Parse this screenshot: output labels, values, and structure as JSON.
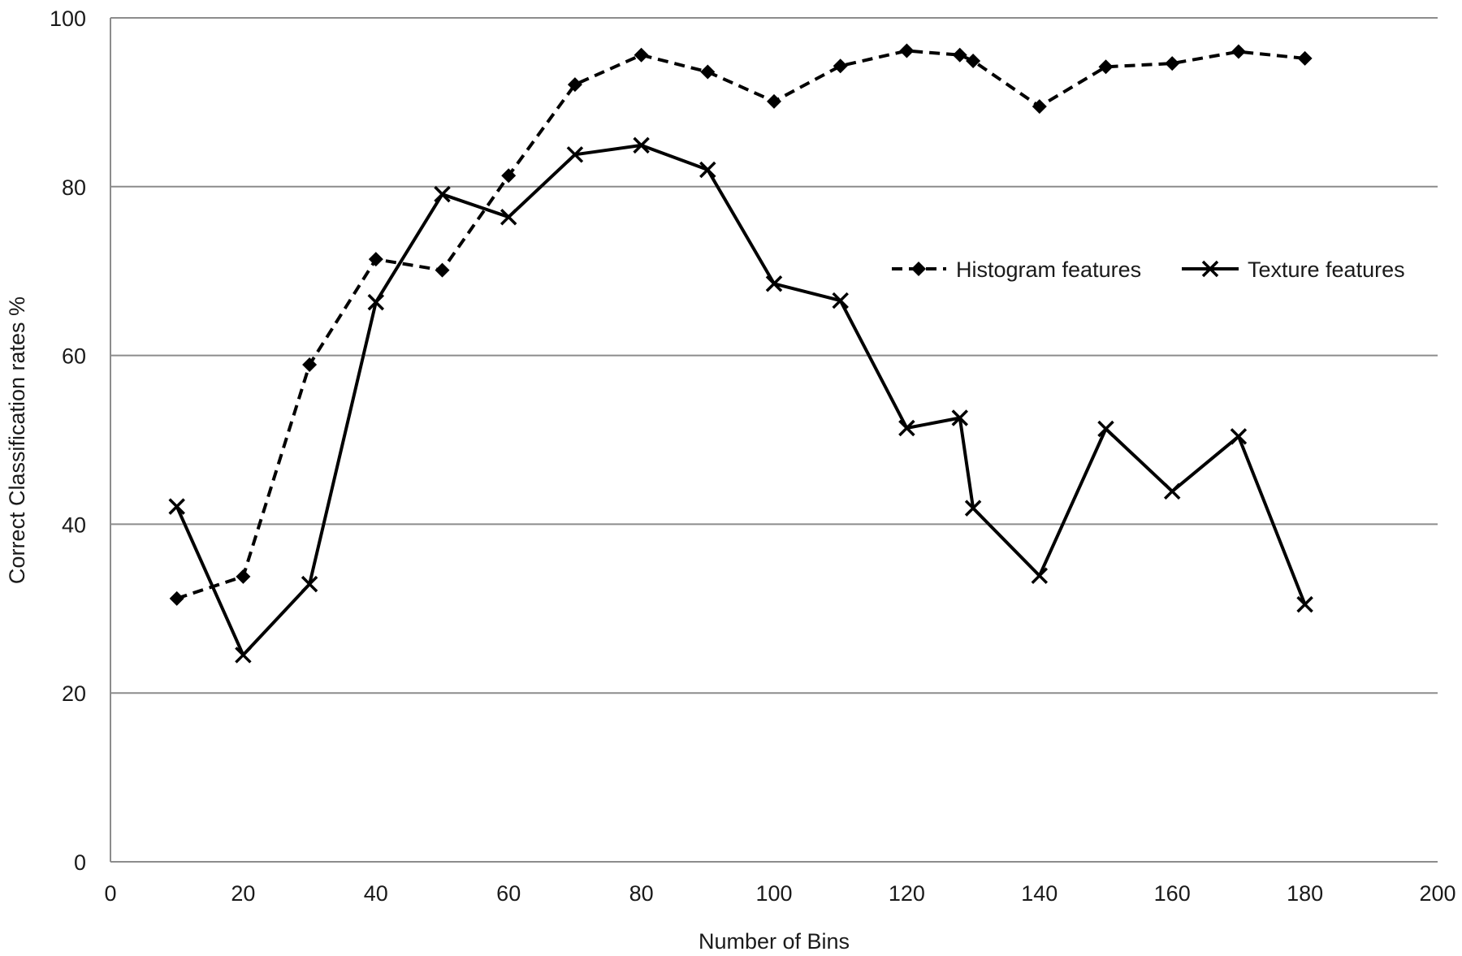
{
  "chart_data": {
    "type": "line",
    "title": "",
    "xlabel": "Number of Bins",
    "ylabel": "Correct Classification rates %",
    "xlim": [
      0,
      200
    ],
    "ylim": [
      0,
      100
    ],
    "xticks": [
      0,
      20,
      40,
      60,
      80,
      100,
      120,
      140,
      160,
      180,
      200
    ],
    "yticks": [
      0,
      20,
      40,
      60,
      80,
      100
    ],
    "grid": "horizontal",
    "legend_position": "right",
    "series": [
      {
        "name": "Histogram features",
        "line_style": "dashed",
        "marker": "diamond",
        "color": "#000000",
        "points": [
          [
            10,
            31.2
          ],
          [
            20,
            33.8
          ],
          [
            30,
            58.9
          ],
          [
            40,
            71.4
          ],
          [
            50,
            70.1
          ],
          [
            60,
            81.3
          ],
          [
            70,
            92.1
          ],
          [
            80,
            95.6
          ],
          [
            90,
            93.6
          ],
          [
            100,
            90.1
          ],
          [
            110,
            94.3
          ],
          [
            120,
            96.1
          ],
          [
            128,
            95.6
          ],
          [
            130,
            94.9
          ],
          [
            140,
            89.5
          ],
          [
            150,
            94.2
          ],
          [
            160,
            94.6
          ],
          [
            170,
            96.0
          ],
          [
            180,
            95.2
          ]
        ]
      },
      {
        "name": "Texture features",
        "line_style": "solid",
        "marker": "x",
        "color": "#000000",
        "points": [
          [
            10,
            42.1
          ],
          [
            20,
            24.5
          ],
          [
            30,
            32.9
          ],
          [
            40,
            66.3
          ],
          [
            50,
            79.1
          ],
          [
            60,
            76.4
          ],
          [
            70,
            83.8
          ],
          [
            80,
            84.9
          ],
          [
            90,
            82.0
          ],
          [
            100,
            68.5
          ],
          [
            110,
            66.5
          ],
          [
            120,
            51.4
          ],
          [
            128,
            52.6
          ],
          [
            130,
            41.9
          ],
          [
            140,
            33.9
          ],
          [
            150,
            51.3
          ],
          [
            160,
            43.9
          ],
          [
            170,
            50.4
          ],
          [
            180,
            30.5
          ]
        ]
      }
    ]
  }
}
